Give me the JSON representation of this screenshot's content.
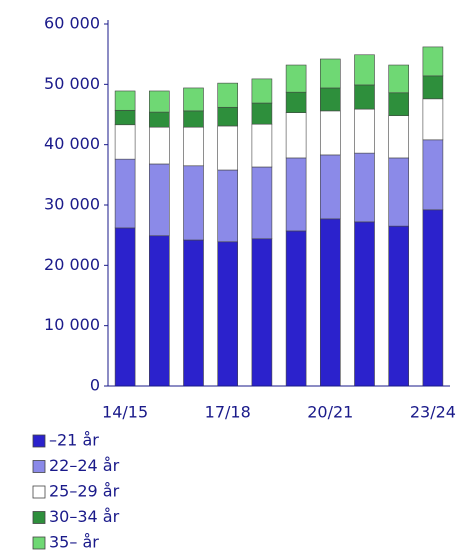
{
  "chart_data": {
    "type": "stacked-bar",
    "categories": [
      "14/15",
      null,
      null,
      "17/18",
      null,
      null,
      "20/21",
      null,
      null,
      "23/24"
    ],
    "series": [
      {
        "name": "–21 år",
        "color": "#2b22cc",
        "values": [
          26200,
          24900,
          24200,
          23900,
          24400,
          25700,
          27700,
          27200,
          26500,
          29200
        ]
      },
      {
        "name": "22–24 år",
        "color": "#8b8ae8",
        "values": [
          11400,
          11900,
          12300,
          11900,
          11900,
          12100,
          10600,
          11400,
          11300,
          11600
        ]
      },
      {
        "name": "25–29 år",
        "color": "#ffffff",
        "values": [
          5700,
          6100,
          6400,
          7300,
          7100,
          7500,
          7300,
          7300,
          7000,
          6800
        ]
      },
      {
        "name": "30–34 år",
        "color": "#2e8f3c",
        "values": [
          2400,
          2500,
          2700,
          3100,
          3500,
          3400,
          3800,
          4000,
          3800,
          3800
        ]
      },
      {
        "name": "35– år",
        "color": "#6fd874",
        "values": [
          3200,
          3500,
          3800,
          4000,
          4000,
          4500,
          4800,
          5000,
          4600,
          4800
        ]
      }
    ],
    "ylim": [
      0,
      60000
    ],
    "yticks": [
      0,
      {
        "value": 10000,
        "label": "10 000"
      },
      {
        "value": 20000,
        "label": "20 000"
      },
      {
        "value": 30000,
        "label": "30 000"
      },
      {
        "value": 40000,
        "label": "40 000"
      },
      {
        "value": 50000,
        "label": "50 000"
      },
      {
        "value": 60000,
        "label": "60 000"
      }
    ],
    "legend": "bottom-left"
  }
}
